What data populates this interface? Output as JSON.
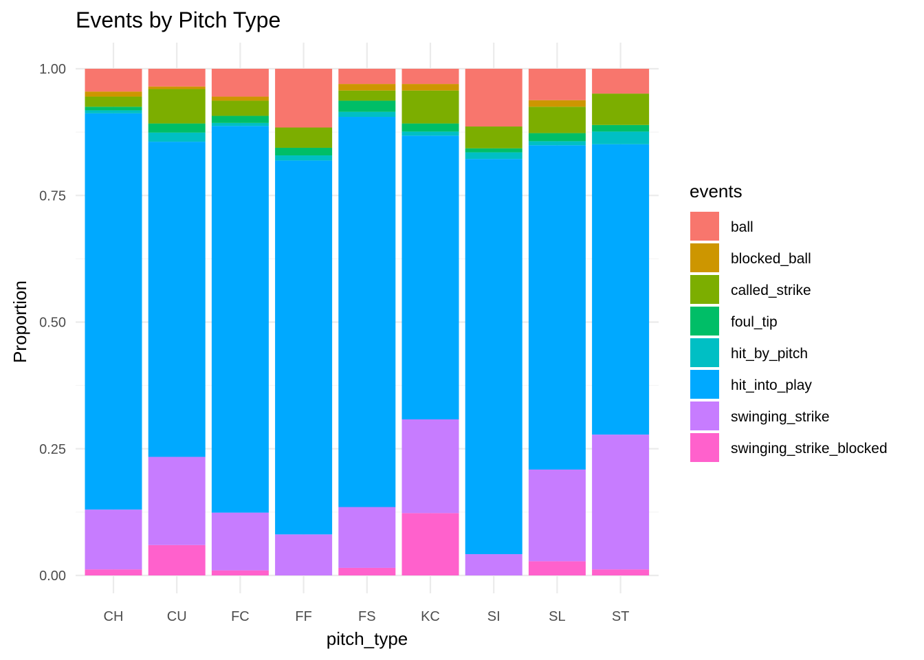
{
  "chart_data": {
    "type": "bar",
    "stacked": true,
    "title": "Events by Pitch Type",
    "xlabel": "pitch_type",
    "ylabel": "Proportion",
    "ylim": [
      0,
      1
    ],
    "yticks": [
      "0.00",
      "0.25",
      "0.50",
      "0.75",
      "1.00"
    ],
    "ytick_values": [
      0,
      0.25,
      0.5,
      0.75,
      1.0
    ],
    "grid": true,
    "legend_title": "events",
    "legend_position": "right",
    "categories": [
      "CH",
      "CU",
      "FC",
      "FF",
      "FS",
      "KC",
      "SI",
      "SL",
      "ST"
    ],
    "series": [
      {
        "name": "swinging_strike_blocked",
        "color": "#FF61CC",
        "values": [
          0.012,
          0.06,
          0.01,
          0.0,
          0.015,
          0.123,
          0.0,
          0.028,
          0.012
        ]
      },
      {
        "name": "swinging_strike",
        "color": "#C77CFF",
        "values": [
          0.118,
          0.174,
          0.114,
          0.081,
          0.12,
          0.185,
          0.042,
          0.181,
          0.266
        ]
      },
      {
        "name": "hit_into_play",
        "color": "#00A9FF",
        "values": [
          0.782,
          0.622,
          0.763,
          0.738,
          0.77,
          0.56,
          0.78,
          0.64,
          0.573
        ]
      },
      {
        "name": "hit_by_pitch",
        "color": "#00BFC4",
        "values": [
          0.006,
          0.018,
          0.006,
          0.01,
          0.01,
          0.008,
          0.013,
          0.008,
          0.025
        ]
      },
      {
        "name": "foul_tip",
        "color": "#00BE67",
        "values": [
          0.007,
          0.018,
          0.014,
          0.015,
          0.022,
          0.016,
          0.008,
          0.016,
          0.013
        ]
      },
      {
        "name": "called_strike",
        "color": "#7CAE00",
        "values": [
          0.02,
          0.068,
          0.03,
          0.04,
          0.02,
          0.065,
          0.043,
          0.052,
          0.062
        ]
      },
      {
        "name": "blocked_ball",
        "color": "#CD9600",
        "values": [
          0.01,
          0.005,
          0.008,
          0.0,
          0.013,
          0.013,
          0.0,
          0.013,
          0.0
        ]
      },
      {
        "name": "ball",
        "color": "#F8766D",
        "values": [
          0.045,
          0.035,
          0.055,
          0.116,
          0.03,
          0.03,
          0.114,
          0.062,
          0.049
        ]
      }
    ],
    "legend_order": [
      "ball",
      "blocked_ball",
      "called_strike",
      "foul_tip",
      "hit_by_pitch",
      "hit_into_play",
      "swinging_strike",
      "swinging_strike_blocked"
    ]
  }
}
